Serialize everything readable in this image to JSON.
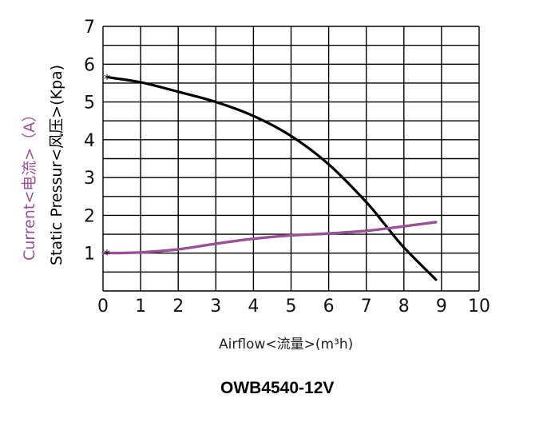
{
  "chart_data": {
    "type": "line",
    "title": "OWB4540-12V",
    "xlabel": "Airflow<流量>(m³h)",
    "ylabel": "Static Pressur<风压>(Kpa)",
    "ylabel_secondary": "Current<电流>(A)",
    "xlim": [
      0,
      10
    ],
    "ylim": [
      0,
      7
    ],
    "x_ticks": [
      "0",
      "1",
      "2",
      "3",
      "4",
      "5",
      "6",
      "7",
      "8",
      "9",
      "10"
    ],
    "y_ticks": [
      "1",
      "2",
      "3",
      "4",
      "5",
      "6",
      "7"
    ],
    "grid": true,
    "series": [
      {
        "name": "Static Pressure (Kpa)",
        "color": "#000000",
        "x": [
          0.15,
          1,
          2,
          3,
          4,
          5,
          6,
          7,
          7.5,
          8,
          8.85
        ],
        "y": [
          5.65,
          5.52,
          5.27,
          5.0,
          4.63,
          4.1,
          3.35,
          2.35,
          1.75,
          1.15,
          0.3
        ]
      },
      {
        "name": "Current (A)",
        "color": "#9b4f96",
        "x": [
          0,
          1,
          2,
          3,
          4,
          5,
          6,
          7,
          8,
          8.85
        ],
        "y": [
          1.0,
          1.02,
          1.1,
          1.25,
          1.38,
          1.47,
          1.52,
          1.59,
          1.71,
          1.82
        ]
      }
    ],
    "markers": [
      {
        "series": "Static Pressure (Kpa)",
        "x": 0.0,
        "y": 5.65,
        "symbol": "*"
      },
      {
        "series": "Current (A)",
        "x": 0.0,
        "y": 1.0,
        "symbol": "*"
      }
    ]
  },
  "labels": {
    "ylabel_pressure": "Static Pressur<风压>(Kpa)",
    "ylabel_current": "Current<电流>（A）",
    "xlabel": "Airflow<流量>(m³h)",
    "title": "OWB4540-12V"
  }
}
